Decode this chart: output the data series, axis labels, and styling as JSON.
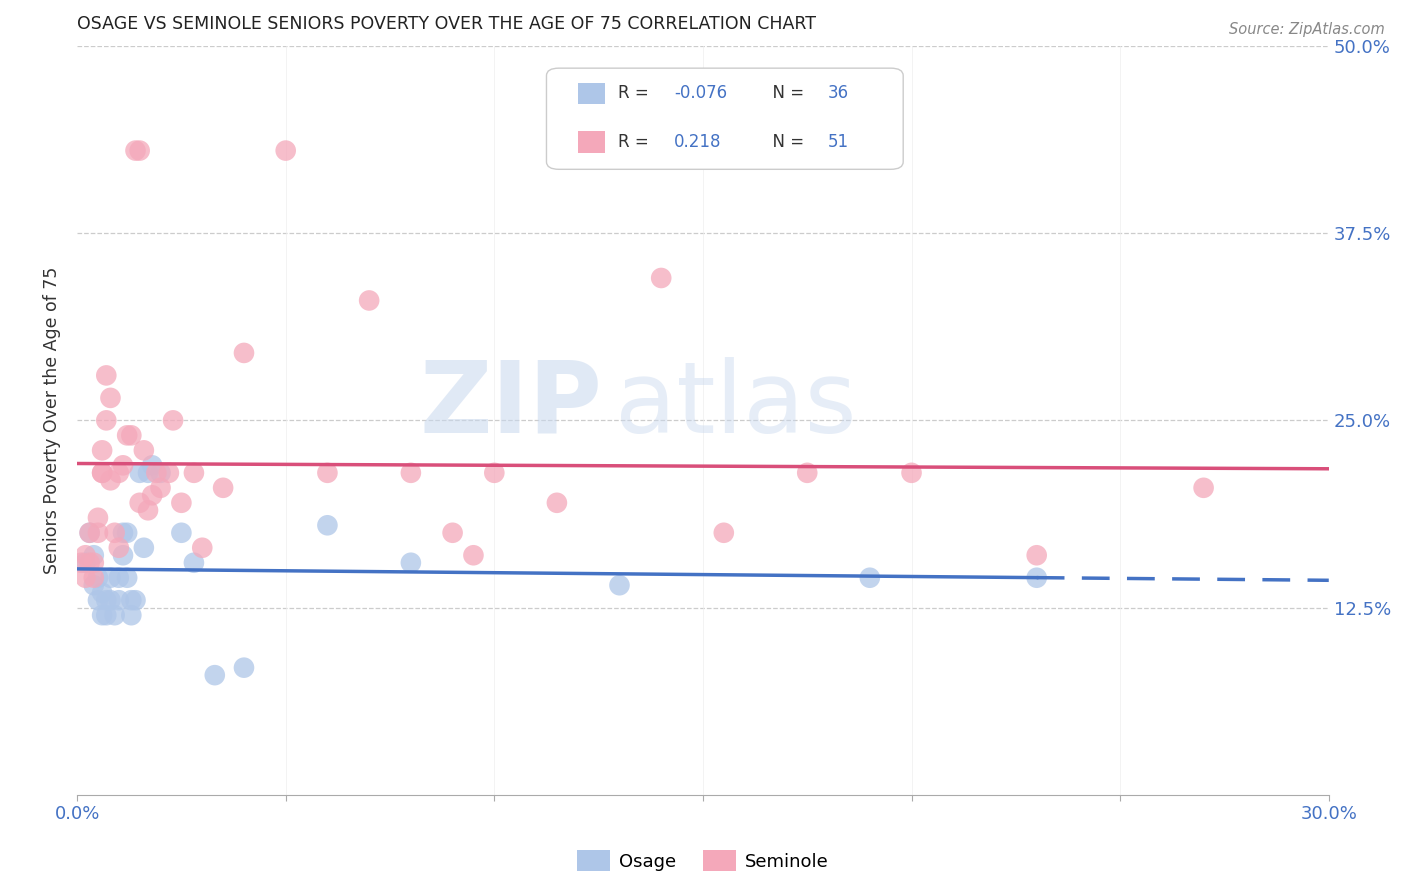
{
  "title": "OSAGE VS SEMINOLE SENIORS POVERTY OVER THE AGE OF 75 CORRELATION CHART",
  "source": "Source: ZipAtlas.com",
  "ylabel": "Seniors Poverty Over the Age of 75",
  "xlim": [
    0.0,
    0.3
  ],
  "ylim": [
    0.0,
    0.5
  ],
  "osage_color": "#aec6e8",
  "seminole_color": "#f4a8ba",
  "osage_line_color": "#4472c4",
  "seminole_line_color": "#d94f7a",
  "osage_x": [
    0.002,
    0.003,
    0.004,
    0.004,
    0.005,
    0.005,
    0.006,
    0.006,
    0.007,
    0.007,
    0.008,
    0.008,
    0.009,
    0.01,
    0.01,
    0.011,
    0.011,
    0.012,
    0.012,
    0.013,
    0.013,
    0.014,
    0.015,
    0.016,
    0.017,
    0.018,
    0.02,
    0.025,
    0.028,
    0.033,
    0.04,
    0.06,
    0.08,
    0.13,
    0.19,
    0.23
  ],
  "osage_y": [
    0.155,
    0.175,
    0.16,
    0.14,
    0.145,
    0.13,
    0.135,
    0.12,
    0.13,
    0.12,
    0.145,
    0.13,
    0.12,
    0.145,
    0.13,
    0.175,
    0.16,
    0.145,
    0.175,
    0.13,
    0.12,
    0.13,
    0.215,
    0.165,
    0.215,
    0.22,
    0.215,
    0.175,
    0.155,
    0.08,
    0.085,
    0.18,
    0.155,
    0.14,
    0.145,
    0.145
  ],
  "seminole_x": [
    0.001,
    0.002,
    0.002,
    0.003,
    0.003,
    0.004,
    0.004,
    0.005,
    0.005,
    0.006,
    0.006,
    0.006,
    0.007,
    0.007,
    0.008,
    0.008,
    0.009,
    0.01,
    0.01,
    0.011,
    0.012,
    0.013,
    0.014,
    0.015,
    0.015,
    0.016,
    0.017,
    0.018,
    0.019,
    0.02,
    0.022,
    0.023,
    0.025,
    0.028,
    0.03,
    0.035,
    0.04,
    0.05,
    0.06,
    0.07,
    0.08,
    0.09,
    0.095,
    0.1,
    0.115,
    0.14,
    0.155,
    0.175,
    0.2,
    0.23,
    0.27
  ],
  "seminole_y": [
    0.155,
    0.145,
    0.16,
    0.175,
    0.155,
    0.155,
    0.145,
    0.185,
    0.175,
    0.215,
    0.23,
    0.215,
    0.25,
    0.28,
    0.265,
    0.21,
    0.175,
    0.165,
    0.215,
    0.22,
    0.24,
    0.24,
    0.43,
    0.195,
    0.43,
    0.23,
    0.19,
    0.2,
    0.215,
    0.205,
    0.215,
    0.25,
    0.195,
    0.215,
    0.165,
    0.205,
    0.295,
    0.43,
    0.215,
    0.33,
    0.215,
    0.175,
    0.16,
    0.215,
    0.195,
    0.345,
    0.175,
    0.215,
    0.215,
    0.16,
    0.205
  ]
}
